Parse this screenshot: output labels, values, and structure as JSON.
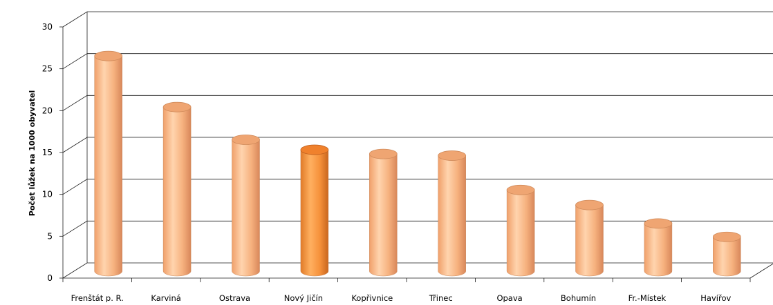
{
  "chart_data": {
    "type": "bar",
    "style": "3d-cylinder",
    "categories": [
      "Frenštát p. R.",
      "Karviná",
      "Ostrava",
      "Nový Jičín",
      "Kopřivnice",
      "Třinec",
      "Opava",
      "Bohumín",
      "Fr.-Místek",
      "Havířov"
    ],
    "values": [
      25.7,
      19.6,
      15.7,
      14.5,
      14.0,
      13.8,
      9.7,
      7.9,
      5.7,
      4.1
    ],
    "highlight": "Nový Jičín",
    "title": "",
    "xlabel": "",
    "ylabel": "Počet lůžek na 1000 obyvatel",
    "ylim": [
      0,
      30
    ],
    "yticks": [
      "0",
      "5",
      "10",
      "15",
      "20",
      "25",
      "30"
    ],
    "grid": true,
    "legend": "none",
    "colors": {
      "bar": "#F7B27A",
      "bar_highlight": "#F5903A",
      "grid": "#000000"
    }
  }
}
